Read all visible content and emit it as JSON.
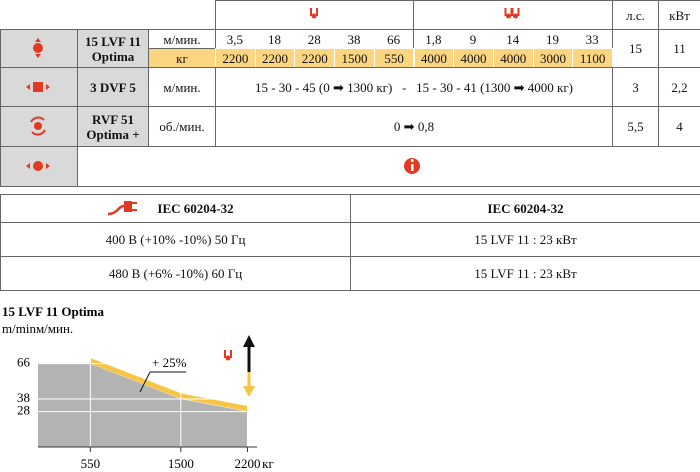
{
  "spec_table": {
    "header": {
      "hp": "л.с.",
      "kw": "кВт"
    },
    "rows": [
      {
        "model": [
          "15 LVF 11",
          "Optima"
        ],
        "units": [
          "м/мин.",
          "кг"
        ],
        "speeds": [
          "3,5",
          "18",
          "28",
          "38",
          "66",
          "1,8",
          "9",
          "14",
          "19",
          "33"
        ],
        "loads": [
          "2200",
          "2200",
          "2200",
          "1500",
          "550",
          "4000",
          "4000",
          "4000",
          "3000",
          "1100"
        ],
        "hp": "15",
        "kw": "11"
      },
      {
        "model": [
          "3 DVF 5"
        ],
        "unit": "м/мин.",
        "value": "15 - 30 - 45 (0 ➡ 1300 кг)   -   15 - 30 - 41 (1300 ➡ 4000 кг)",
        "hp": "3",
        "kw": "2,2"
      },
      {
        "model": [
          "RVF 51",
          "Optima +"
        ],
        "unit": "об./мин.",
        "value": "0 ➡ 0,8",
        "hp": "5,5",
        "kw": "4"
      }
    ]
  },
  "power_table": {
    "header": [
      "IEC 60204-32",
      "IEC 60204-32"
    ],
    "rows": [
      [
        "400 В (+10% -10%) 50 Гц",
        "15 LVF 11 : 23 кВт"
      ],
      [
        "480 В (+6% -10%) 60 Гц",
        "15 LVF 11 : 23 кВт"
      ]
    ]
  },
  "chart_data": {
    "type": "area",
    "title": "15 LVF 11 Optima",
    "y_label": "m/minм/мин.",
    "x_label": "кг",
    "annotation": "+ 25%",
    "x": [
      0,
      550,
      1500,
      2200
    ],
    "y": [
      66,
      66,
      38,
      28
    ],
    "color": "#b3b3b3",
    "boost_color": "#f7c542",
    "xlim": [
      0,
      2300
    ],
    "ylim": [
      0,
      70
    ],
    "xticks": [
      550,
      1500,
      2200
    ],
    "yticks": [
      28,
      38,
      66
    ],
    "grid": true
  }
}
